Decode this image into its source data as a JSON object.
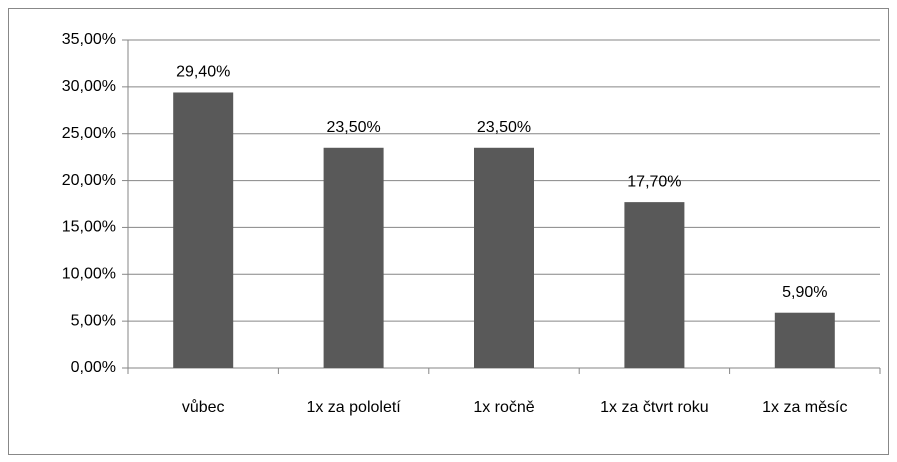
{
  "chart_data": {
    "type": "bar",
    "categories": [
      "vůbec",
      "1x za pololetí",
      "1x ročně",
      "1x za čtvrt roku",
      "1x za měsíc"
    ],
    "values": [
      29.4,
      23.5,
      23.5,
      17.7,
      5.9
    ],
    "value_labels": [
      "29,40%",
      "23,50%",
      "23,50%",
      "17,70%",
      "5,90%"
    ],
    "color": "#595959",
    "ylim": [
      0,
      35
    ],
    "yticks": [
      {
        "value": 0,
        "label": "0,00%"
      },
      {
        "value": 5,
        "label": "5,00%"
      },
      {
        "value": 10,
        "label": "10,00%"
      },
      {
        "value": 15,
        "label": "15,00%"
      },
      {
        "value": 20,
        "label": "20,00%"
      },
      {
        "value": 25,
        "label": "25,00%"
      },
      {
        "value": 30,
        "label": "30,00%"
      },
      {
        "value": 35,
        "label": "35,00%"
      }
    ],
    "grid": true
  }
}
